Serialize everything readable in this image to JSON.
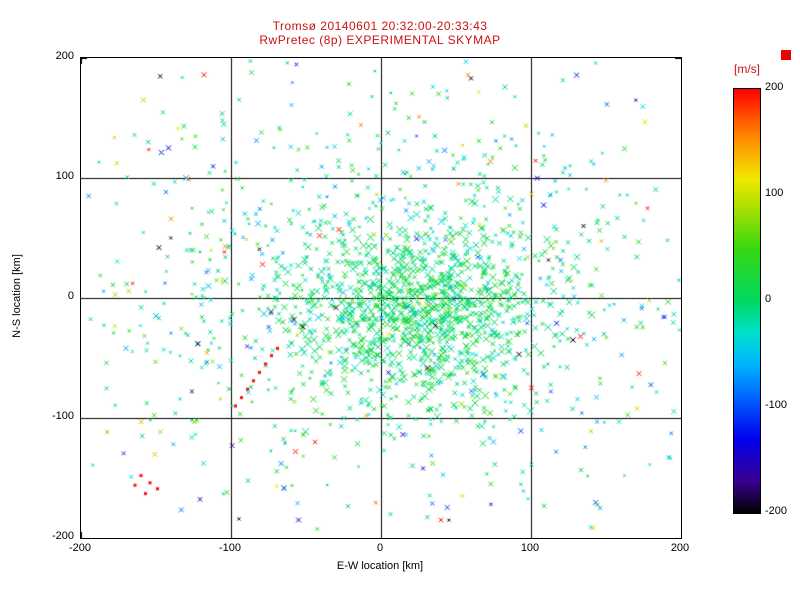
{
  "chart_data": {
    "type": "scatter",
    "title": "Tromsø 20140601 20:32:00-20:33:43",
    "subtitle": "RwPretec (8p) EXPERIMENTAL SKYMAP",
    "title_color": "#cc1111",
    "xlabel": "E-W location [km]",
    "ylabel": "N-S location [km]",
    "xlim": [
      -200,
      200
    ],
    "ylim": [
      -200,
      200
    ],
    "xticks": [
      -200,
      -100,
      0,
      100,
      200
    ],
    "yticks": [
      200,
      100,
      0,
      -100,
      -200
    ],
    "grid": true,
    "grid_lines_x": [
      -100,
      0,
      100
    ],
    "grid_lines_y": [
      -100,
      0,
      100
    ],
    "marker": "x",
    "background": "#ffffff",
    "axis_color": "#000000",
    "legend": "none",
    "colorbar": {
      "label": "[m/s]",
      "label_color": "#cc1111",
      "min": -200,
      "max": 200,
      "ticks": [
        200,
        100,
        0,
        -100,
        -200
      ],
      "stops": [
        [
          -200,
          "#000000"
        ],
        [
          -170,
          "#3a0090"
        ],
        [
          -130,
          "#0000ee"
        ],
        [
          -90,
          "#0066ff"
        ],
        [
          -60,
          "#00b4ff"
        ],
        [
          -30,
          "#00e0cc"
        ],
        [
          0,
          "#00d860"
        ],
        [
          50,
          "#38d810"
        ],
        [
          90,
          "#b0e000"
        ],
        [
          115,
          "#f0e800"
        ],
        [
          155,
          "#ff8800"
        ],
        [
          200,
          "#ff0000"
        ]
      ]
    },
    "seed": 20140601,
    "clusters": [
      {
        "name": "dense-core",
        "dist": "gauss",
        "count": 950,
        "cx": 28,
        "cy": -8,
        "sx": 42,
        "sy": 38,
        "v_mean": 5,
        "v_sigma": 22,
        "size_min": 1.6,
        "size_max": 3.6
      },
      {
        "name": "halo",
        "dist": "gauss",
        "count": 750,
        "cx": 5,
        "cy": 8,
        "sx": 98,
        "sy": 82,
        "v_mean": -12,
        "v_sigma": 34,
        "size_min": 1.2,
        "size_max": 2.4
      },
      {
        "name": "sparse-field",
        "dist": "uniform",
        "count": 180,
        "x_range": [
          -195,
          195
        ],
        "y_range": [
          -195,
          195
        ],
        "v_mean": 0,
        "v_sigma": 100,
        "size_min": 1.4,
        "size_max": 2.6
      }
    ],
    "highlight_points": [
      [
        -97,
        -90,
        195,
        1.5,
        "dot"
      ],
      [
        -93,
        -83,
        195,
        1.5,
        "dot"
      ],
      [
        -89,
        -76,
        195,
        1.5,
        "dot"
      ],
      [
        -85,
        -69,
        195,
        1.5,
        "dot"
      ],
      [
        -81,
        -62,
        195,
        1.5,
        "dot"
      ],
      [
        -77,
        -55,
        195,
        1.5,
        "dot"
      ],
      [
        -73,
        -48,
        195,
        1.5,
        "dot"
      ],
      [
        -69,
        -42,
        198,
        1.5,
        "dot"
      ],
      [
        -160,
        -148,
        195,
        1.5,
        "dot"
      ],
      [
        -154,
        -154,
        195,
        1.5,
        "dot"
      ],
      [
        -149,
        -159,
        195,
        1.5,
        "dot"
      ],
      [
        -157,
        -163,
        195,
        1.5,
        "dot"
      ],
      [
        -164,
        -156,
        195,
        1.5,
        "dot"
      ],
      [
        -118,
        186,
        195,
        2.5,
        "x"
      ],
      [
        -28,
        57,
        192,
        2.5,
        "x"
      ],
      [
        -41,
        52,
        190,
        2.5,
        "x"
      ],
      [
        -79,
        28,
        192,
        2.5,
        "x"
      ],
      [
        133,
        -32,
        195,
        2.5,
        "x"
      ],
      [
        172,
        -63,
        185,
        2.5,
        "x"
      ],
      [
        -57,
        -128,
        192,
        2.5,
        "x"
      ],
      [
        -44,
        -120,
        188,
        2.2,
        "x"
      ],
      [
        40,
        -185,
        190,
        2.2,
        "x"
      ],
      [
        -140,
        66,
        150,
        2.4,
        "x"
      ],
      [
        -104,
        43,
        152,
        2.2,
        "x"
      ],
      [
        150,
        98,
        148,
        2.2,
        "x"
      ],
      [
        58,
        186,
        155,
        2.0,
        "x"
      ],
      [
        -10,
        -98,
        145,
        2.0,
        "x"
      ],
      [
        30,
        -5,
        110,
        2.0,
        "x"
      ],
      [
        55,
        10,
        105,
        2.0,
        "x"
      ],
      [
        5,
        -30,
        112,
        2.0,
        "x"
      ],
      [
        -148,
        42,
        -198,
        2.4,
        "x"
      ],
      [
        -122,
        -38,
        -196,
        2.4,
        "x"
      ],
      [
        -58,
        -18,
        -195,
        2.6,
        "x"
      ],
      [
        -52,
        -24,
        -195,
        2.4,
        "x"
      ],
      [
        92,
        -47,
        -196,
        2.6,
        "x"
      ],
      [
        128,
        -35,
        -195,
        2.6,
        "x"
      ],
      [
        135,
        60,
        -197,
        2.0,
        "x"
      ],
      [
        -30,
        -8,
        -196,
        2.4,
        "x"
      ],
      [
        60,
        183,
        -195,
        2.0,
        "x"
      ],
      [
        -55,
        -185,
        -150,
        2.4,
        "x"
      ],
      [
        28,
        -142,
        -135,
        2.0,
        "x"
      ],
      [
        5,
        -62,
        -125,
        2.0,
        "x"
      ],
      [
        -150,
        -15,
        -60,
        3.0,
        "x"
      ],
      [
        -130,
        100,
        -55,
        3.0,
        "x"
      ],
      [
        -82,
        62,
        -58,
        3.0,
        "x"
      ],
      [
        -170,
        -42,
        -62,
        2.6,
        "x"
      ],
      [
        -115,
        10,
        -55,
        2.8,
        "x"
      ],
      [
        75,
        -120,
        -60,
        2.6,
        "x"
      ]
    ]
  }
}
